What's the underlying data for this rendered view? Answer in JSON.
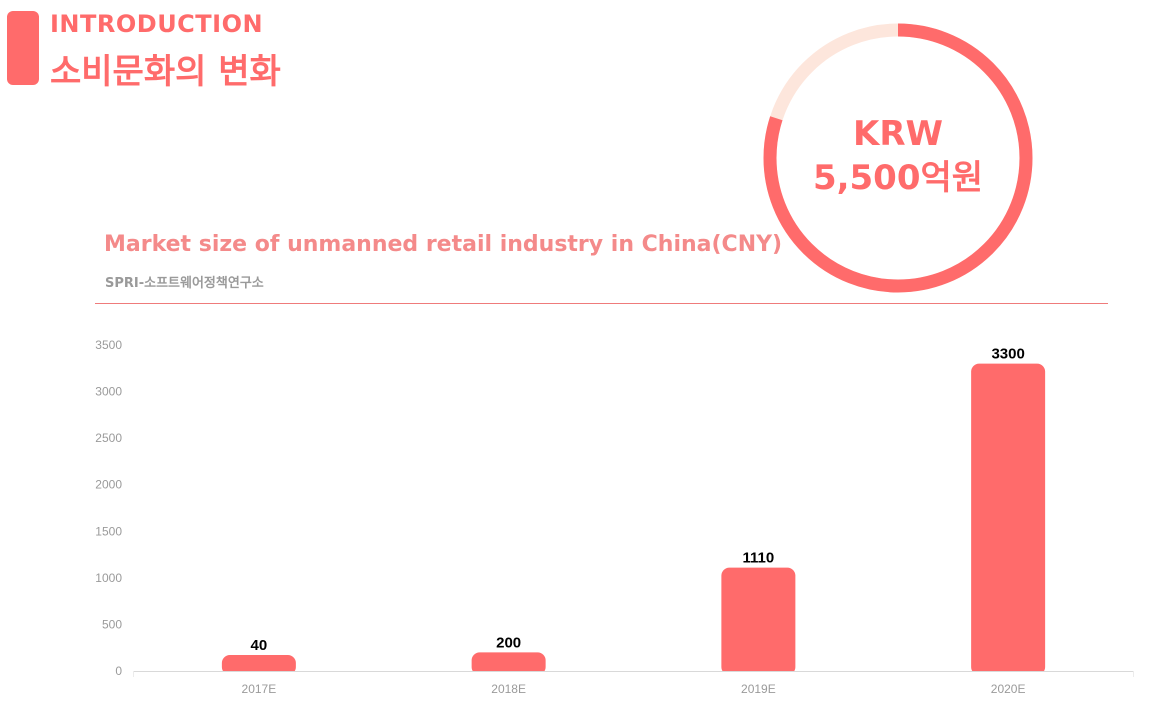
{
  "header": {
    "kicker": "INTRODUCTION",
    "title": "소비문화의 변화"
  },
  "highlight": {
    "currency": "KRW",
    "amount": "5,500억원",
    "ring_fraction": 0.8
  },
  "chart_data": {
    "type": "bar",
    "title": "Market size of unmanned retail industry in China(CNY)",
    "source": "SPRI-소프트웨어정책연구소",
    "categories": [
      "2017E",
      "2018E",
      "2019E",
      "2020E"
    ],
    "values": [
      40,
      200,
      1110,
      3300
    ],
    "data_labels": [
      "40",
      "200",
      "1110",
      "3300"
    ],
    "ylim": [
      0,
      3500
    ],
    "yticks": [
      0,
      500,
      1000,
      1500,
      2000,
      2500,
      3000,
      3500
    ],
    "xlabel": "",
    "ylabel": "",
    "grid": false
  },
  "colors": {
    "accent": "#ff6b6b",
    "ring_track": "#fde6dc",
    "title": "#f48a8a",
    "axis": "#d9d9d9",
    "tick": "#9a9a9a"
  }
}
